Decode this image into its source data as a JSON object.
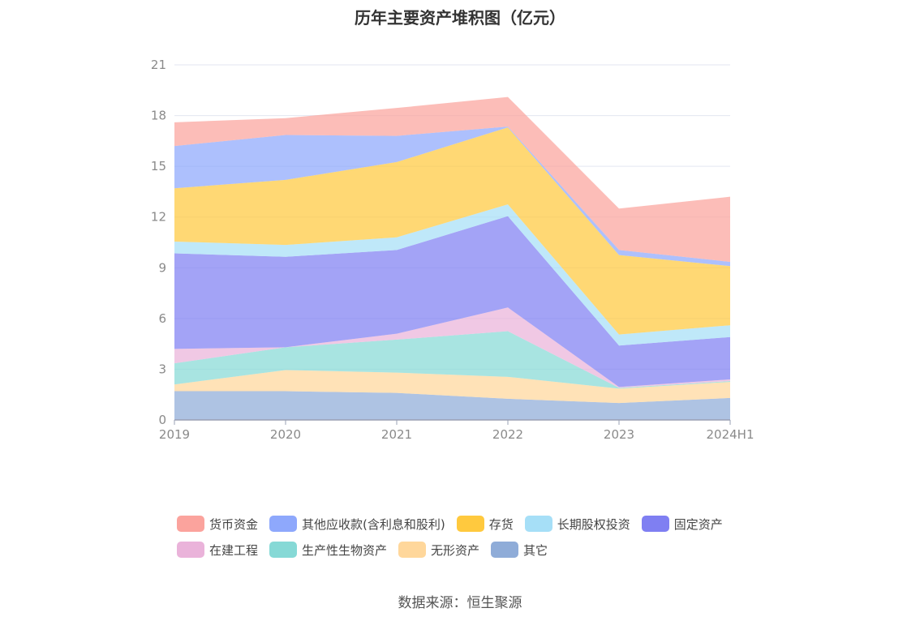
{
  "chart_data": {
    "type": "area",
    "stacked": true,
    "title": "历年主要资产堆积图（亿元）",
    "x": [
      "2019",
      "2020",
      "2021",
      "2022",
      "2023",
      "2024H1"
    ],
    "ylim": [
      0,
      21
    ],
    "yticks": [
      "0",
      "3",
      "6",
      "9",
      "12",
      "15",
      "18",
      "21"
    ],
    "grid": true,
    "legend_position": "bottom",
    "series": [
      {
        "name": "其它",
        "color": "#8facd8",
        "values": [
          1.7,
          1.7,
          1.6,
          1.25,
          1.0,
          1.3
        ]
      },
      {
        "name": "无形资产",
        "color": "#ffd79b",
        "values": [
          0.4,
          1.25,
          1.2,
          1.3,
          0.85,
          0.95
        ]
      },
      {
        "name": "生产性生物资产",
        "color": "#86d9d6",
        "values": [
          1.25,
          1.35,
          1.95,
          2.7,
          0.05,
          0.05
        ]
      },
      {
        "name": "在建工程",
        "color": "#eab3da",
        "values": [
          0.85,
          0.0,
          0.35,
          1.4,
          0.05,
          0.1
        ]
      },
      {
        "name": "固定资产",
        "color": "#7f7ff2",
        "values": [
          5.65,
          5.35,
          4.95,
          5.4,
          2.45,
          2.5
        ]
      },
      {
        "name": "长期股权投资",
        "color": "#a6dff7",
        "values": [
          0.7,
          0.7,
          0.75,
          0.7,
          0.65,
          0.7
        ]
      },
      {
        "name": "存货",
        "color": "#ffc93e",
        "values": [
          3.15,
          3.85,
          4.45,
          4.55,
          4.7,
          3.5
        ]
      },
      {
        "name": "其他应收款(含利息和股利)",
        "color": "#8ea8fc",
        "values": [
          2.5,
          2.65,
          1.55,
          0.05,
          0.3,
          0.25
        ]
      },
      {
        "name": "货币资金",
        "color": "#fba39d",
        "values": [
          1.4,
          1.0,
          1.65,
          1.75,
          2.45,
          3.85
        ]
      }
    ]
  },
  "legend": {
    "row1": [
      "货币资金",
      "其他应收款(含利息和股利)",
      "存货",
      "长期股权投资",
      "固定资产"
    ],
    "row2": [
      "在建工程",
      "生产性生物资产",
      "无形资产",
      "其它"
    ],
    "colors": {
      "货币资金": "#fba39d",
      "其他应收款(含利息和股利)": "#8ea8fc",
      "存货": "#ffc93e",
      "长期股权投资": "#a6dff7",
      "固定资产": "#7f7ff2",
      "在建工程": "#eab3da",
      "生产性生物资产": "#86d9d6",
      "无形资产": "#ffd79b",
      "其它": "#8facd8"
    }
  },
  "source": "数据来源：恒生聚源"
}
